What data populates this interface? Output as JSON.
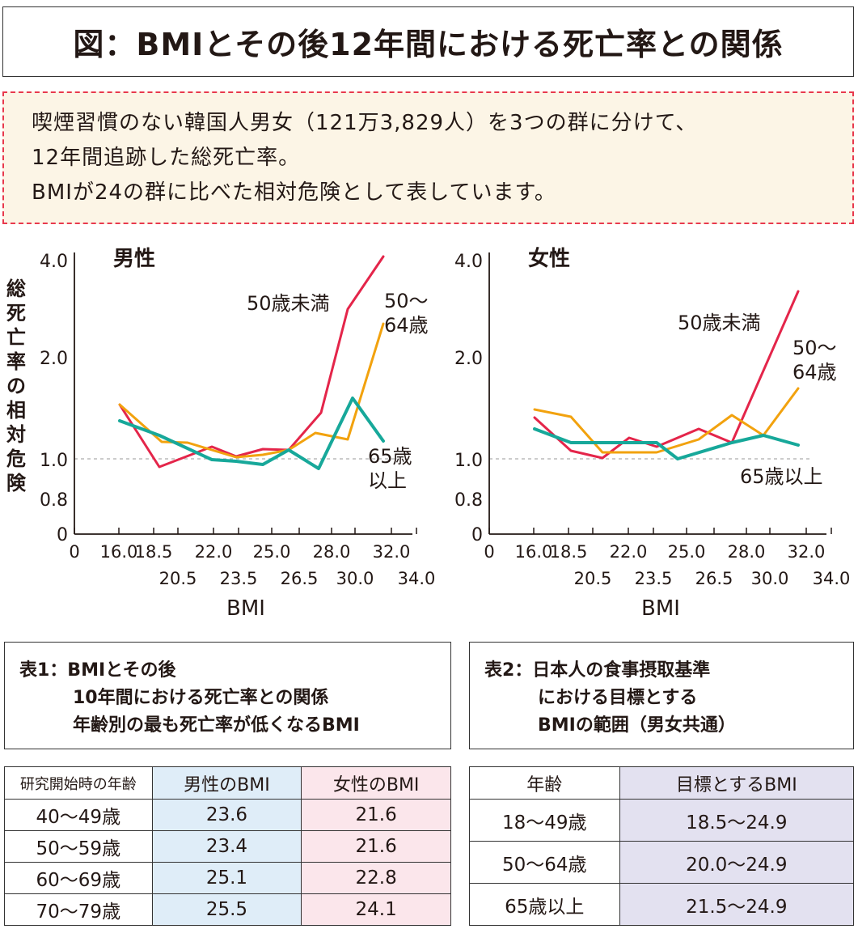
{
  "title": "図：BMIとその後12年間における死亡率との関係",
  "note": {
    "lines": [
      "喫煙習慣のない韓国人男女（121万3,829人）を3つの群に分けて、",
      "12年間追跡した総死亡率。",
      "BMIが24の群に比べた相対危険として表しています。"
    ]
  },
  "colors": {
    "under50": "#e4254a",
    "age50_64": "#f2a20e",
    "over65": "#17a89a",
    "reference_line": "#bbbbbb",
    "note_border": "#e8394d",
    "note_bg": "#fcf5e6"
  },
  "chart_data": [
    {
      "type": "line",
      "title": "男性",
      "xlabel": "BMI",
      "ylabel": "総死亡率の相対危険",
      "x_ticks": [
        "0",
        "16.0",
        "18.5",
        "20.5",
        "22.0",
        "23.5",
        "25.0",
        "26.5",
        "28.0",
        "30.0",
        "32.0",
        "34.0"
      ],
      "y_ticks": [
        "0",
        "0.8",
        "1.0",
        "2.0",
        "4.0"
      ],
      "reference_line": 1.0,
      "series": [
        {
          "name": "50歳未満",
          "label_lines": [
            "50歳未満"
          ],
          "color": "#e4254a",
          "x": [
            17,
            18.5,
            20.5,
            22,
            23.5,
            25,
            26.5,
            28,
            29,
            31
          ],
          "y": [
            1.35,
            0.93,
            1.08,
            1.02,
            1.07,
            1.06,
            1.28,
            2.45,
            4.0,
            4.0
          ]
        },
        {
          "name": "50～64歳",
          "label_lines": [
            "50～",
            "64歳"
          ],
          "color": "#f2a20e",
          "x": [
            17,
            18.5,
            20.5,
            22,
            23.5,
            25,
            26.5,
            28,
            30,
            31
          ],
          "y": [
            1.35,
            1.12,
            1.11,
            1.03,
            1.03,
            1.05,
            1.16,
            1.12,
            2.05,
            2.05
          ]
        },
        {
          "name": "65歳以上",
          "label_lines": [
            "65歳",
            "以上"
          ],
          "color": "#17a89a",
          "x": [
            17,
            18.5,
            20.5,
            22,
            23.5,
            25,
            26.5,
            28,
            30,
            31
          ],
          "y": [
            1.24,
            1.14,
            1.0,
            0.99,
            0.97,
            1.05,
            0.92,
            1.38,
            1.15,
            1.15
          ]
        }
      ]
    },
    {
      "type": "line",
      "title": "女性",
      "xlabel": "BMI",
      "ylabel": "総死亡率の相対危険",
      "x_ticks": [
        "0",
        "16.0",
        "18.5",
        "20.5",
        "22.0",
        "23.5",
        "25.0",
        "26.5",
        "28.0",
        "30.0",
        "32.0",
        "34.0"
      ],
      "y_ticks": [
        "0",
        "0.8",
        "1.0",
        "2.0",
        "4.0"
      ],
      "reference_line": 1.0,
      "series": [
        {
          "name": "50歳未満",
          "label_lines": [
            "50歳未満"
          ],
          "color": "#e4254a",
          "x": [
            17,
            18.5,
            20.5,
            22,
            23.5,
            25,
            26.5,
            28,
            30,
            31
          ],
          "y": [
            1.28,
            1.06,
            1.02,
            1.13,
            1.09,
            1.2,
            1.13,
            3.2,
            3.2,
            3.2
          ]
        },
        {
          "name": "50～64歳",
          "label_lines": [
            "50～",
            "64歳"
          ],
          "color": "#f2a20e",
          "x": [
            17,
            18.5,
            20.5,
            22,
            23.5,
            25,
            26.5,
            28,
            30,
            31
          ],
          "y": [
            1.37,
            1.31,
            1.05,
            1.05,
            1.1,
            1.14,
            1.31,
            1.17,
            1.58,
            1.58
          ]
        },
        {
          "name": "65歳以上",
          "label_lines": [
            "65歳以上"
          ],
          "color": "#17a89a",
          "x": [
            17,
            18.5,
            20.5,
            22,
            23.5,
            25,
            26.5,
            28,
            30,
            31
          ],
          "y": [
            1.2,
            1.1,
            1.1,
            1.1,
            1.0,
            1.06,
            1.1,
            1.15,
            1.09,
            1.09
          ]
        }
      ]
    }
  ],
  "table1": {
    "caption_lines": [
      "表1：BMIとその後",
      "10年間における死亡率との関係",
      "年齢別の最も死亡率が低くなるBMI"
    ],
    "headers": [
      "研究開始時の年齢",
      "男性のBMI",
      "女性のBMI"
    ],
    "rows": [
      [
        "40～49歳",
        "23.6",
        "21.6"
      ],
      [
        "50～59歳",
        "23.4",
        "21.6"
      ],
      [
        "60～69歳",
        "25.1",
        "22.8"
      ],
      [
        "70～79歳",
        "25.5",
        "24.1"
      ]
    ]
  },
  "table2": {
    "caption_lines": [
      "表2：日本人の食事摂取基準",
      "における目標とする",
      "BMIの範囲（男女共通）"
    ],
    "headers": [
      "年齢",
      "目標とするBMI"
    ],
    "rows": [
      [
        "18～49歳",
        "18.5～24.9"
      ],
      [
        "50～64歳",
        "20.0～24.9"
      ],
      [
        "65歳以上",
        "21.5～24.9"
      ]
    ]
  }
}
